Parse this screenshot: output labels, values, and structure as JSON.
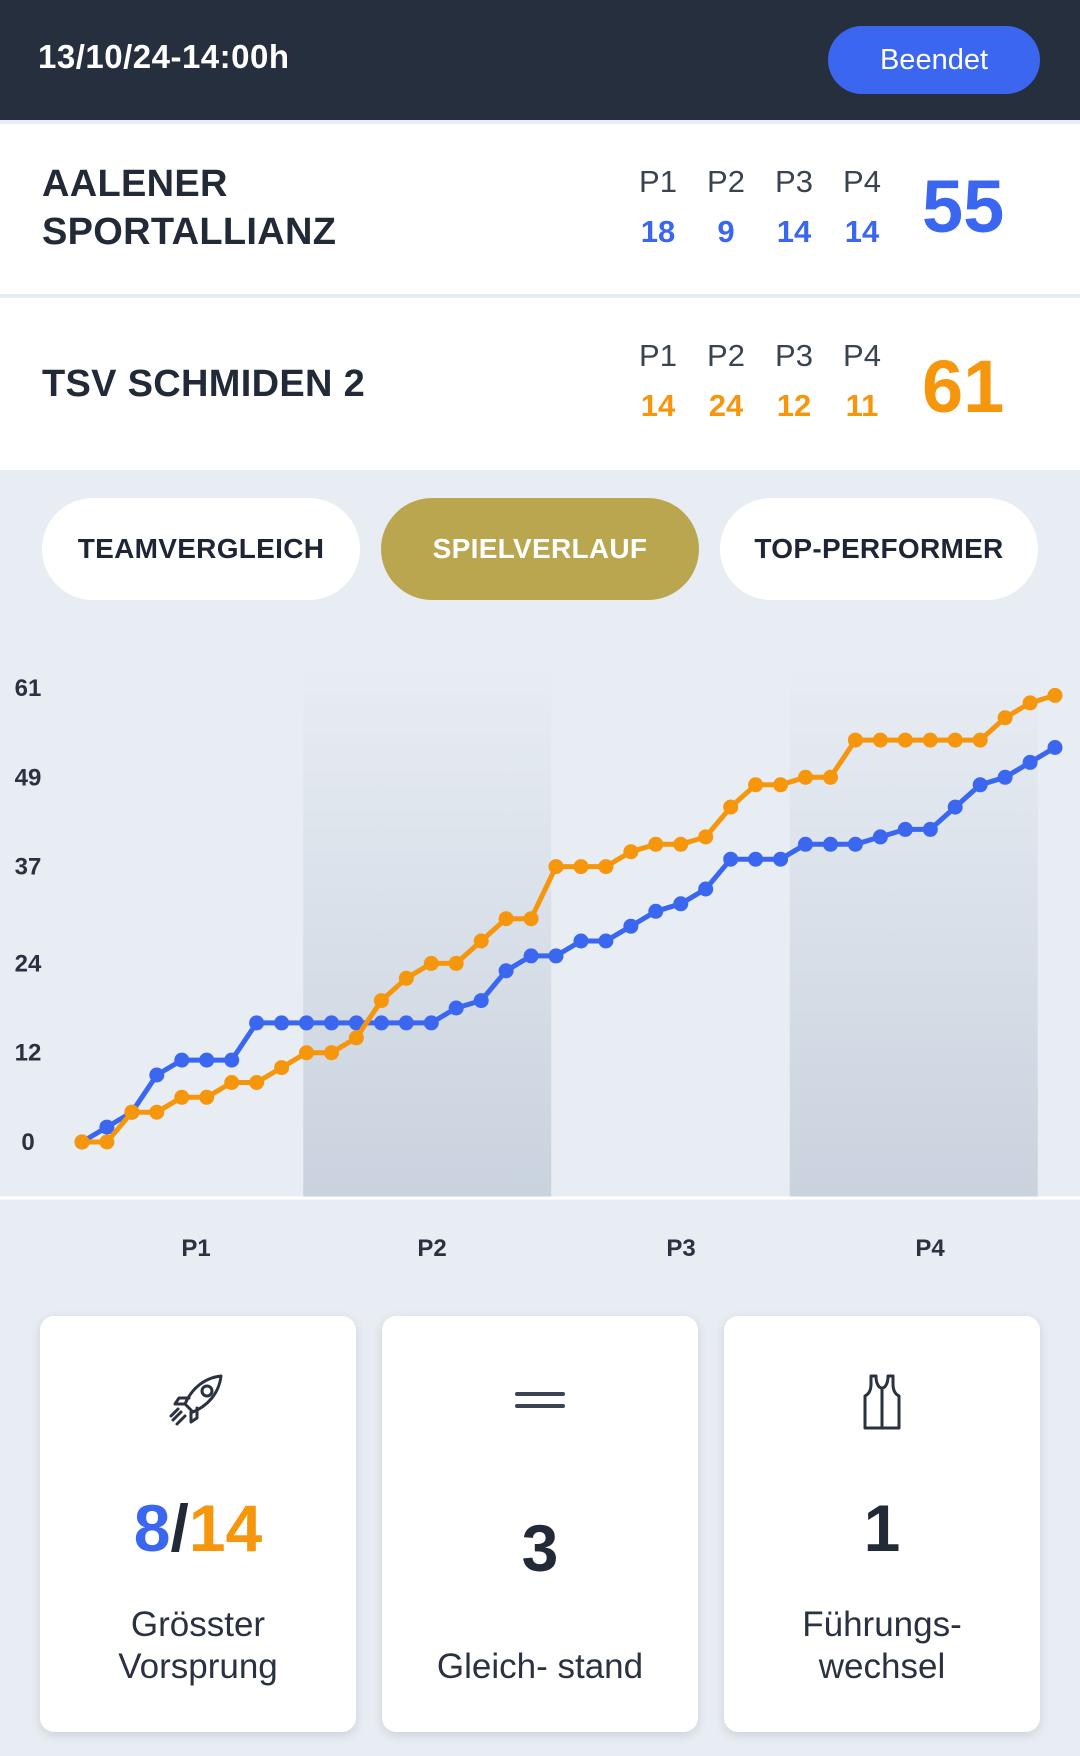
{
  "header": {
    "datetime": "13/10/24-14:00h",
    "status_label": "Beendet"
  },
  "colors": {
    "home": "#3a66f0",
    "away": "#f6960c",
    "active_tab": "#b9a64e",
    "header_bg": "#262f3e"
  },
  "teams": [
    {
      "name": "AALENER SPORTALLIANZ",
      "period_labels": [
        "P1",
        "P2",
        "P3",
        "P4"
      ],
      "period_scores": [
        "18",
        "9",
        "14",
        "14"
      ],
      "total": "55"
    },
    {
      "name": "TSV SCHMIDEN 2",
      "period_labels": [
        "P1",
        "P2",
        "P3",
        "P4"
      ],
      "period_scores": [
        "14",
        "24",
        "12",
        "11"
      ],
      "total": "61"
    }
  ],
  "tabs": [
    {
      "label": "TEAMVERGLEICH",
      "active": false
    },
    {
      "label": "SPIELVERLAUF",
      "active": true
    },
    {
      "label": "TOP-PERFORMER",
      "active": false
    }
  ],
  "chart_data": {
    "type": "line",
    "y_ticks": [
      "61",
      "49",
      "37",
      "24",
      "12",
      "0"
    ],
    "ylim": [
      0,
      61
    ],
    "x_labels": [
      "P1",
      "P2",
      "P3",
      "P4"
    ],
    "shaded_periods": [
      "P2",
      "P4"
    ],
    "series": [
      {
        "color": "#3a66f0",
        "values": [
          0,
          2,
          4,
          9,
          11,
          11,
          11,
          16,
          16,
          16,
          16,
          16,
          16,
          16,
          16,
          18,
          19,
          23,
          25,
          25,
          27,
          27,
          29,
          31,
          32,
          34,
          38,
          38,
          38,
          40,
          40,
          40,
          41,
          42,
          42,
          45,
          48,
          49,
          51,
          53
        ]
      },
      {
        "color": "#f6960c",
        "values": [
          0,
          0,
          4,
          4,
          6,
          6,
          8,
          8,
          10,
          12,
          12,
          14,
          19,
          22,
          24,
          24,
          27,
          30,
          30,
          37,
          37,
          37,
          39,
          40,
          40,
          41,
          45,
          48,
          48,
          49,
          49,
          54,
          54,
          54,
          54,
          54,
          54,
          57,
          59,
          60
        ]
      }
    ]
  },
  "stats": [
    {
      "icon": "rocket-icon",
      "value_home": "8",
      "value_sep": "/",
      "value_away": "14",
      "label_line1": "Grösster",
      "label_line2": "Vorsprung"
    },
    {
      "icon": "equals-icon",
      "value": "3",
      "label_line1": "Gleich- stand"
    },
    {
      "icon": "jersey-icon",
      "value": "1",
      "label_line1": "Führungs-",
      "label_line2": "wechsel"
    }
  ]
}
